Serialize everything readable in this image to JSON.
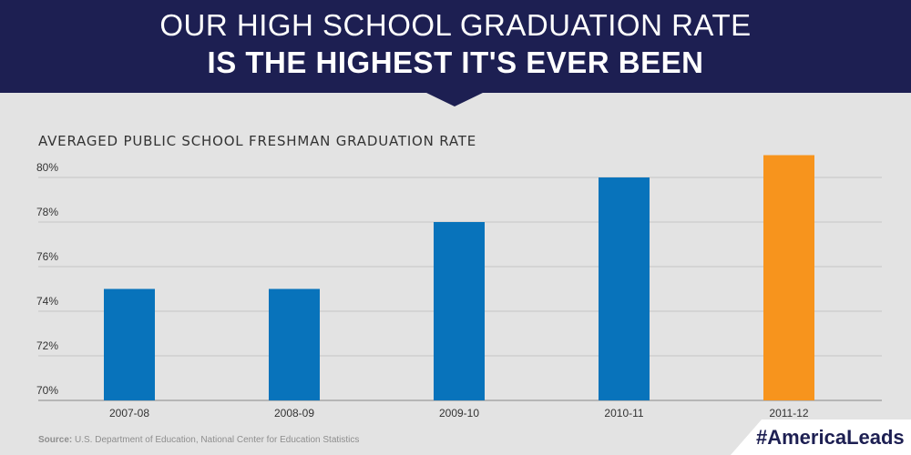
{
  "header": {
    "title_line1": "OUR HIGH SCHOOL GRADUATION RATE",
    "title_line2": "IS THE HIGHEST IT'S EVER BEEN"
  },
  "footer": {
    "source_label": "Source:",
    "source_text": " U.S. Department of Education, National Center for Education Statistics",
    "hashtag": "#AmericaLeads"
  },
  "colors": {
    "banner": "#1d1f52",
    "background": "#e3e3e3",
    "bar_default": "#0873bb",
    "bar_highlight": "#f7941d",
    "grid": "#c4c4c4"
  },
  "chart_data": {
    "type": "bar",
    "title": "AVERAGED PUBLIC SCHOOL FRESHMAN GRADUATION RATE",
    "categories": [
      "2007-08",
      "2008-09",
      "2009-10",
      "2010-11",
      "2011-12"
    ],
    "values": [
      75,
      75,
      78,
      80,
      81
    ],
    "highlight_index": 4,
    "ylim": [
      70,
      82
    ],
    "yticks": [
      70,
      72,
      74,
      76,
      78,
      80
    ],
    "ytick_labels": [
      "70%",
      "72%",
      "74%",
      "76%",
      "78%",
      "80%"
    ],
    "xlabel": "",
    "ylabel": "",
    "grid": true,
    "legend": "none"
  }
}
